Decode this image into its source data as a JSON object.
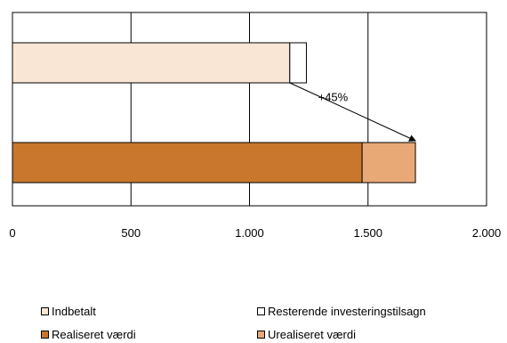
{
  "chart_data": {
    "type": "bar",
    "orientation": "horizontal",
    "stacked": true,
    "title": "",
    "xlabel": "",
    "ylabel": "",
    "xlim": [
      0,
      2000
    ],
    "xticks": [
      0,
      500,
      1000,
      1500,
      2000
    ],
    "xtick_labels": [
      "0",
      "500",
      "1.000",
      "1.500",
      "2.000"
    ],
    "grid": true,
    "legend_position": "bottom",
    "bars": [
      {
        "segments": [
          {
            "series": "Indbetalt",
            "value": 1170
          },
          {
            "series": "Resterende investeringstilsagn",
            "value": 70
          }
        ]
      },
      {
        "segments": [
          {
            "series": "Realiseret værdi",
            "value": 1475
          },
          {
            "series": "Urealiseret værdi",
            "value": 225
          }
        ]
      }
    ],
    "series": [
      {
        "name": "Indbetalt",
        "color": "#fae6d5"
      },
      {
        "name": "Resterende investeringstilsagn",
        "color": "#ffffff"
      },
      {
        "name": "Realiseret værdi",
        "color": "#c8772c"
      },
      {
        "name": "Urealiseret værdi",
        "color": "#e8a977"
      }
    ],
    "annotation": {
      "text": "+45%",
      "from_bar": 0,
      "to_bar": 1
    }
  }
}
